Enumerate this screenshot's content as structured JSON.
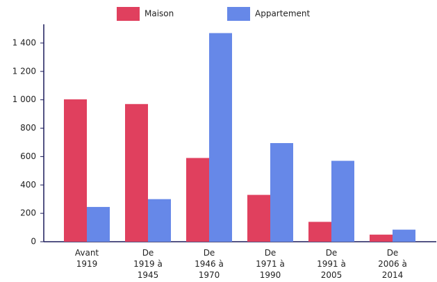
{
  "chart_data": {
    "type": "bar",
    "categories": [
      "Avant\n1919",
      "De\n1919 à\n1945",
      "De\n1946 à\n1970",
      "De\n1971 à\n1990",
      "De\n1991 à\n2005",
      "De\n2006 à\n2014"
    ],
    "series": [
      {
        "name": "Maison",
        "color": "#e0405e",
        "values": [
          1003,
          970,
          590,
          330,
          140,
          50
        ]
      },
      {
        "name": "Appartement",
        "color": "#6688e8",
        "values": [
          245,
          300,
          1470,
          695,
          570,
          85
        ]
      }
    ],
    "ylim": [
      0,
      1500
    ],
    "yticks": [
      0,
      200,
      400,
      600,
      800,
      {
        "value": 1000,
        "label": "1 000"
      },
      {
        "value": 1200,
        "label": "1 200"
      },
      {
        "value": 1400,
        "label": "1 400"
      }
    ],
    "legend": "top"
  }
}
